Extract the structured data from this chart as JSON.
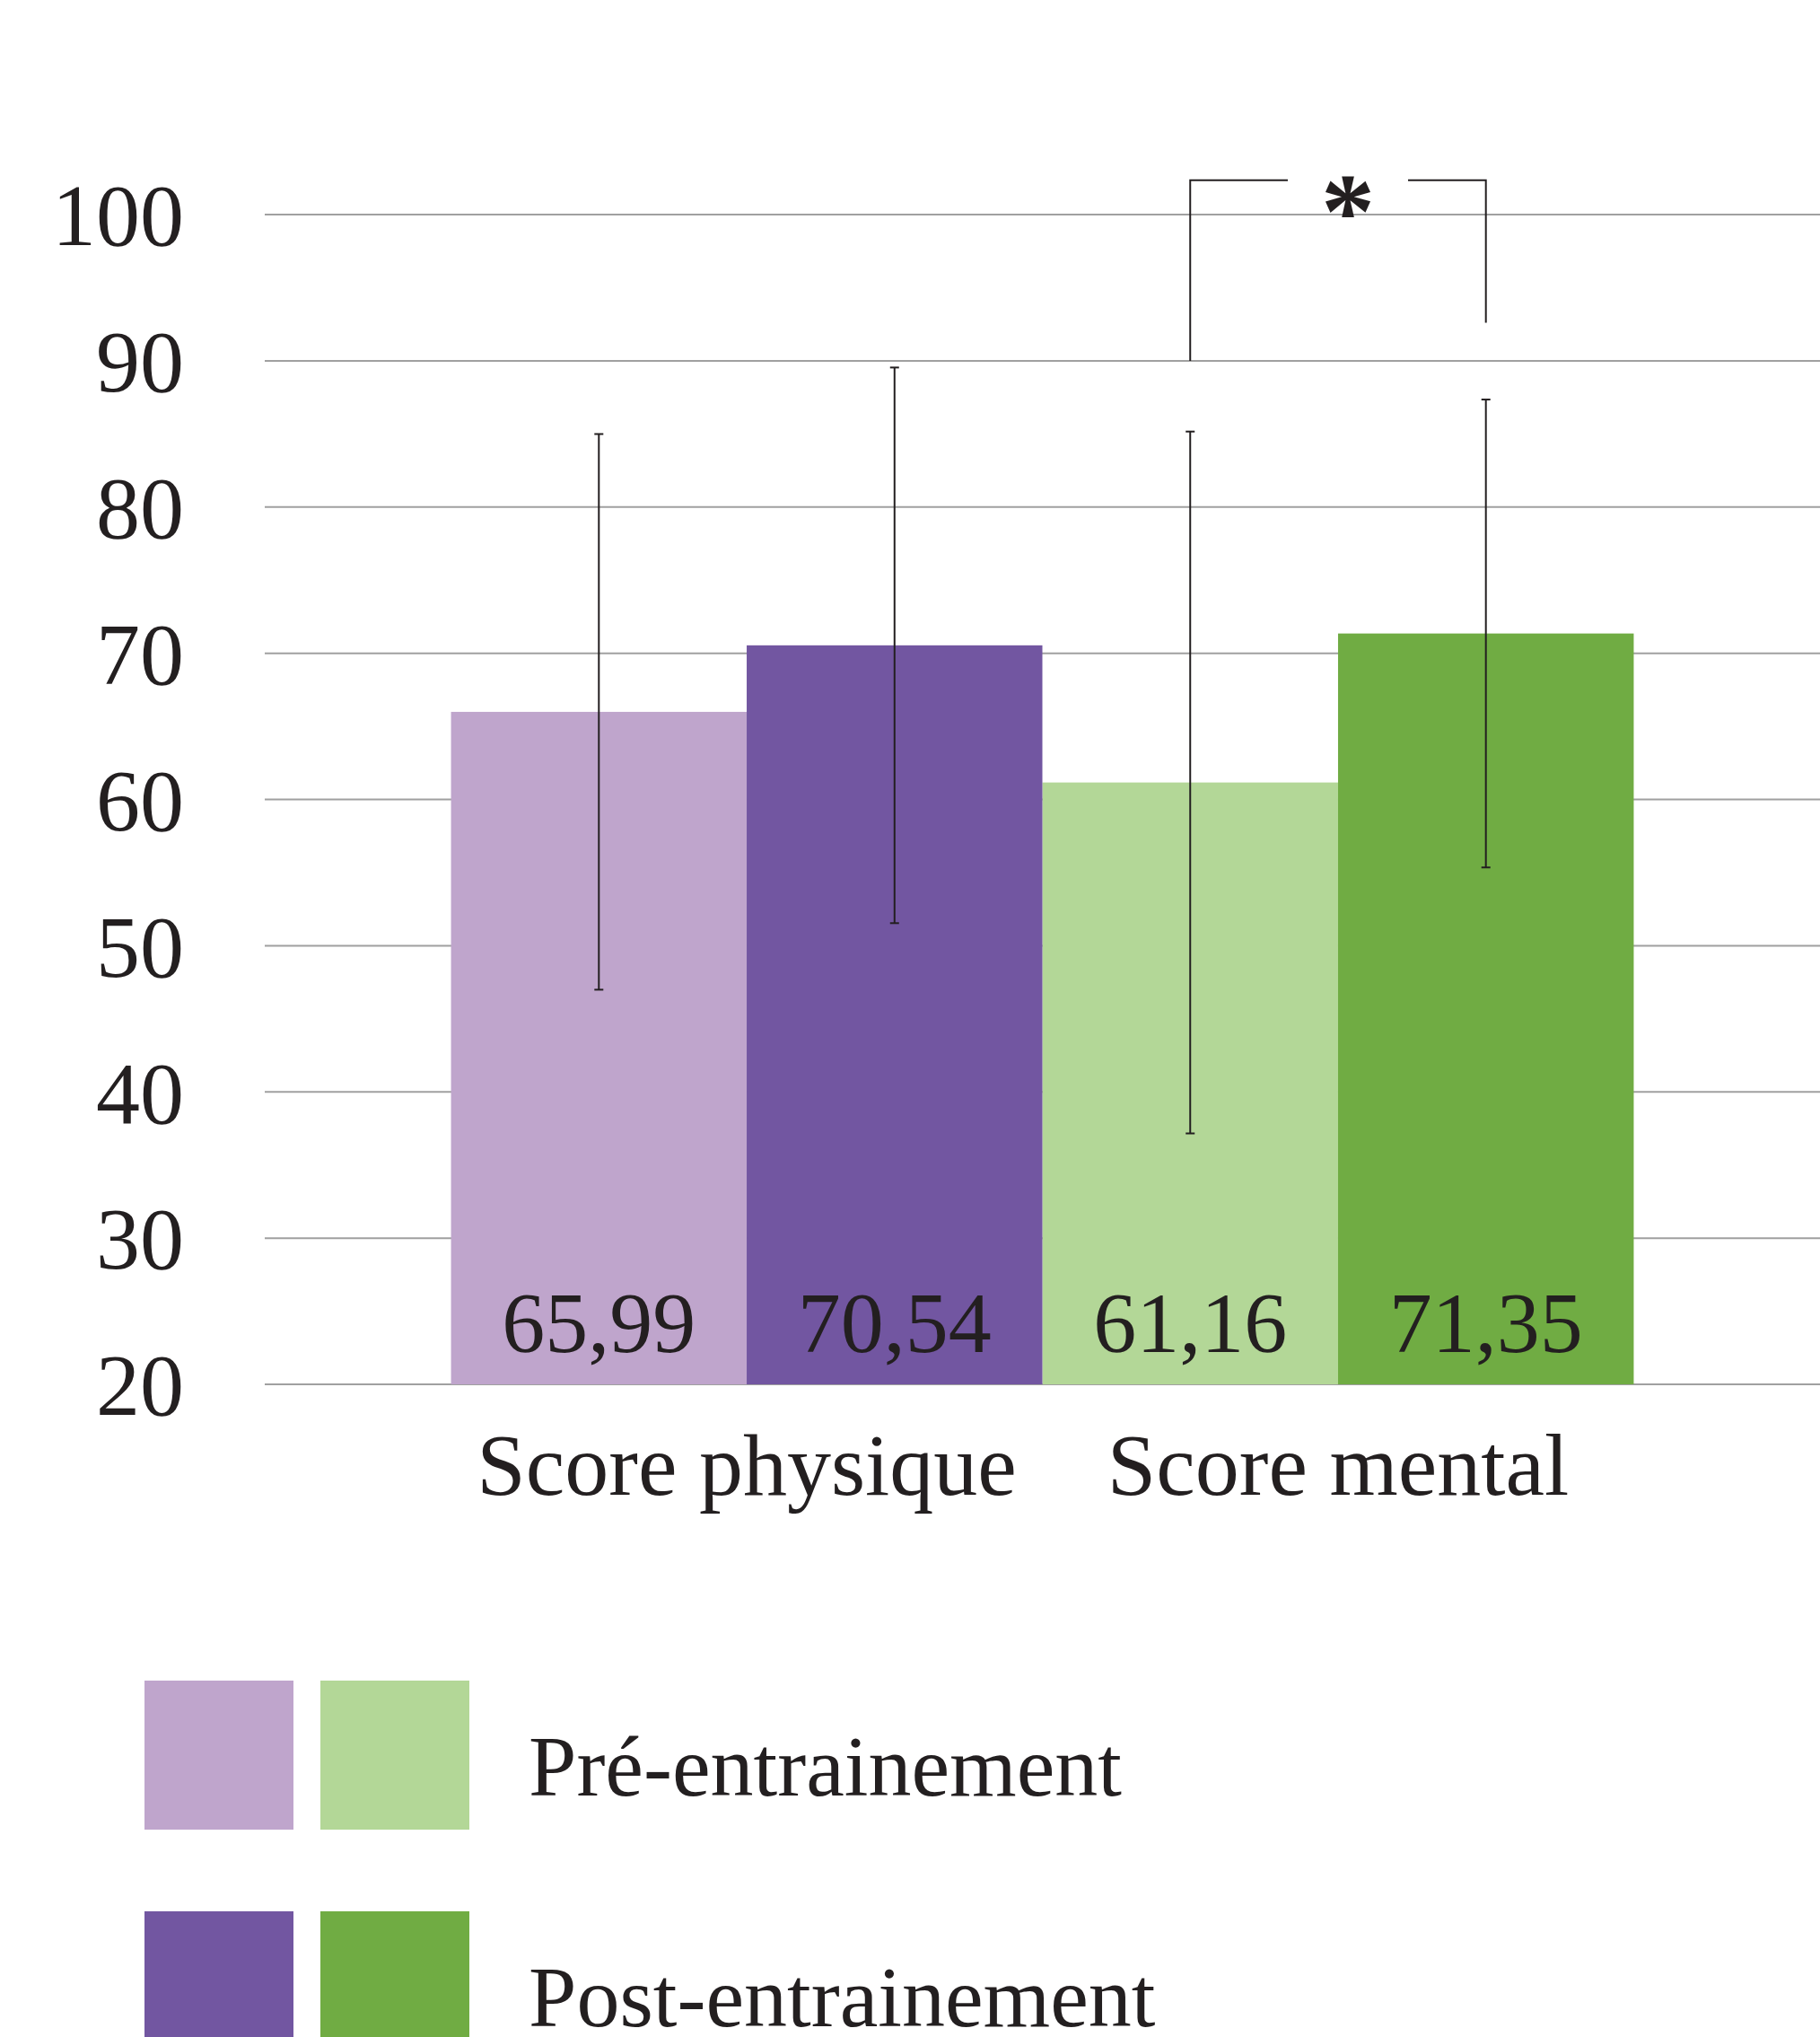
{
  "chart_data": {
    "type": "bar",
    "categories": [
      "Score physique",
      "Score mental"
    ],
    "series": [
      {
        "name": "Pré-entrainement",
        "colors": [
          "#bfa5cc",
          "#b3d797"
        ],
        "values": [
          65.99,
          61.16
        ],
        "errors": [
          19,
          24
        ],
        "value_labels": [
          "65,99",
          "61,16"
        ]
      },
      {
        "name": "Post-entrainement",
        "colors": [
          "#7256a1",
          "#70ac43"
        ],
        "values": [
          70.54,
          71.35
        ],
        "errors": [
          19,
          16
        ],
        "value_labels": [
          "70,54",
          "71,35"
        ]
      }
    ],
    "ylim": [
      20,
      100
    ],
    "yticks": [
      20,
      30,
      40,
      50,
      60,
      70,
      80,
      90,
      100
    ],
    "grid": "y",
    "legend": "bottom left",
    "annotations": [
      "*"
    ]
  }
}
